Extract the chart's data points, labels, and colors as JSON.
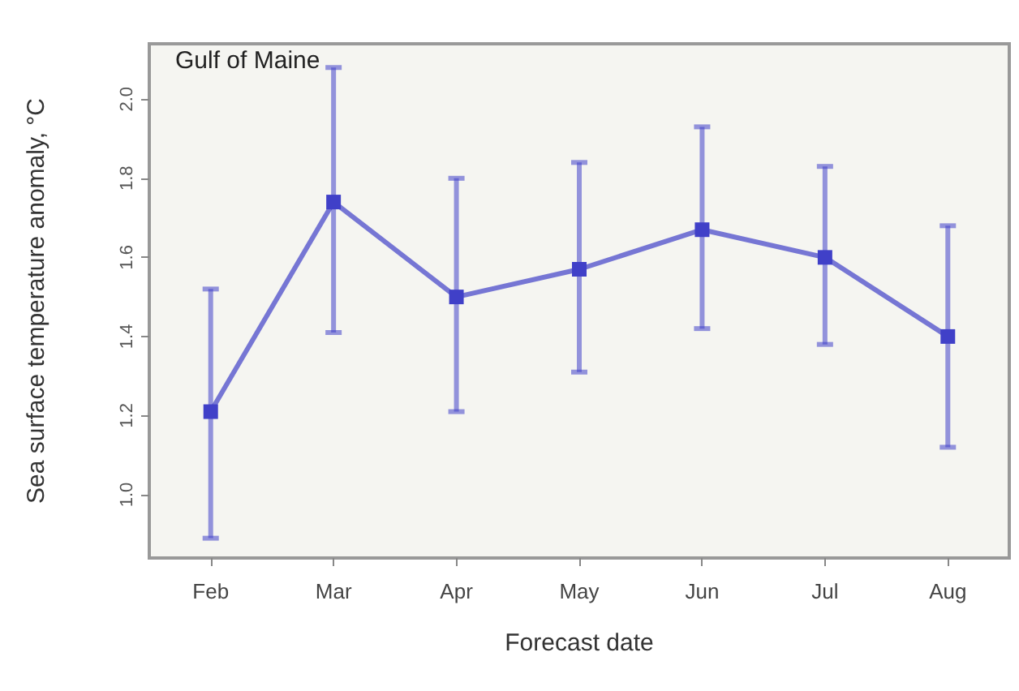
{
  "chart_data": {
    "type": "line",
    "annotations": [
      "Gulf of Maine"
    ],
    "xlabel": "Forecast date",
    "ylabel": "Sea surface temperature anomaly, °C",
    "categories": [
      "Feb",
      "Mar",
      "Apr",
      "May",
      "Jun",
      "Jul",
      "Aug"
    ],
    "series": [
      {
        "color": "#4040c8",
        "values": [
          1.21,
          1.74,
          1.5,
          1.57,
          1.67,
          1.6,
          1.4
        ],
        "errors": [
          [
            0.89,
            1.52
          ],
          [
            1.41,
            2.08
          ],
          [
            1.21,
            1.8
          ],
          [
            1.31,
            1.84
          ],
          [
            1.42,
            1.93
          ],
          [
            1.38,
            1.83
          ],
          [
            1.12,
            1.68
          ]
        ]
      }
    ],
    "ylim": [
      0.84,
      2.14
    ],
    "yticks": [
      {
        "value": 1.0,
        "label": "1.0"
      },
      {
        "value": 1.2,
        "label": "1.2"
      },
      {
        "value": 1.4,
        "label": "1.4"
      },
      {
        "value": 1.6,
        "label": "1.6"
      },
      {
        "value": 1.8,
        "label": "1.8"
      },
      {
        "value": 2.0,
        "label": "2.0"
      }
    ],
    "marker": "square",
    "line_style": "solid",
    "grid": false
  }
}
